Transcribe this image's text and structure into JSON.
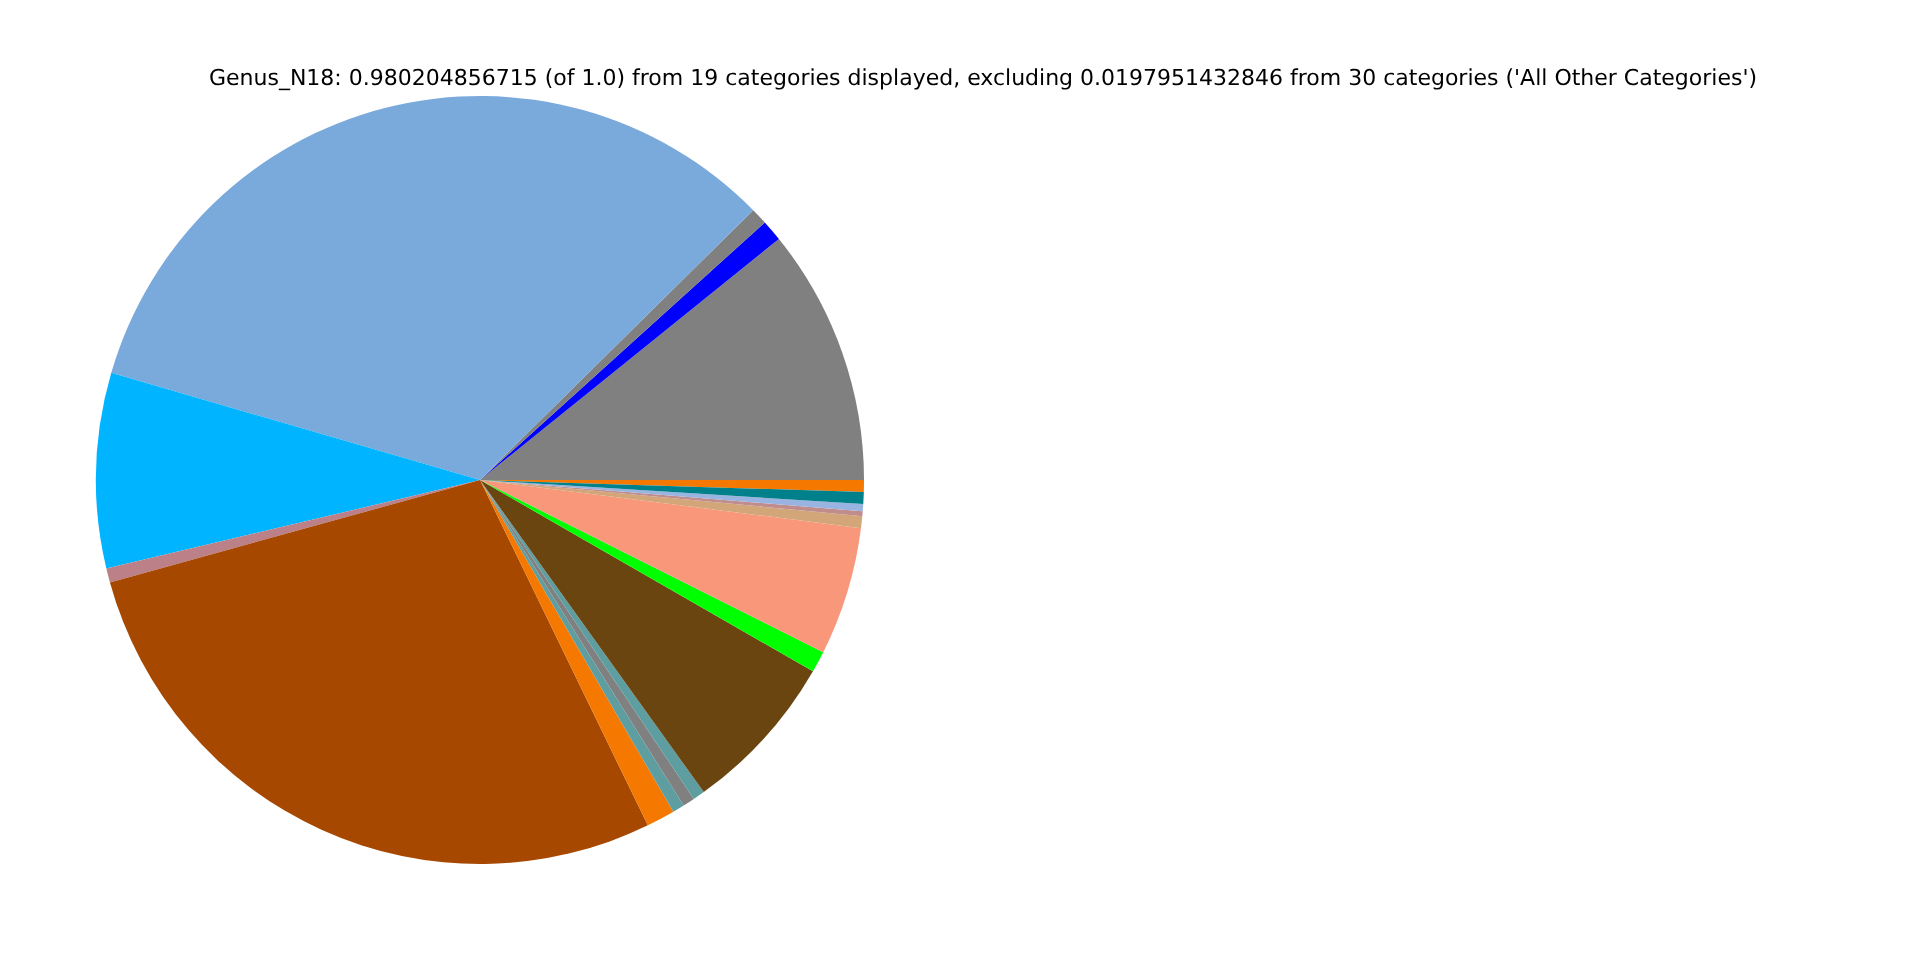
{
  "chart_data": {
    "type": "pie",
    "title": "Genus_N18: 0.980204856715 (of 1.0) from 19 categories displayed, excluding 0.0197951432846 from 30 categories ('All Other Categories')",
    "categories": [
      null,
      null,
      null,
      null,
      null,
      null,
      null,
      null,
      null,
      null,
      null,
      null,
      null,
      null,
      null,
      null,
      null,
      null,
      null
    ],
    "values": [
      0.5,
      10.8,
      0.9,
      0.7,
      33.1,
      8.2,
      0.6,
      27.9,
      1.2,
      0.5,
      0.5,
      0.5,
      6.8,
      0.9,
      5.4,
      0.5,
      0.2,
      0.3,
      0.5
    ],
    "colors": [
      "#f57900",
      "#808080",
      "#0000ff",
      "#808080",
      "#7aa9db",
      "#00b4ff",
      "#bc8088",
      "#a64800",
      "#f57900",
      "#5f9ea0",
      "#808080",
      "#5f9ea0",
      "#6b4510",
      "#00ff00",
      "#f8977a",
      "#d2a679",
      "#c08c8c",
      "#99b4e0",
      "#00808a"
    ],
    "legend": false
  }
}
